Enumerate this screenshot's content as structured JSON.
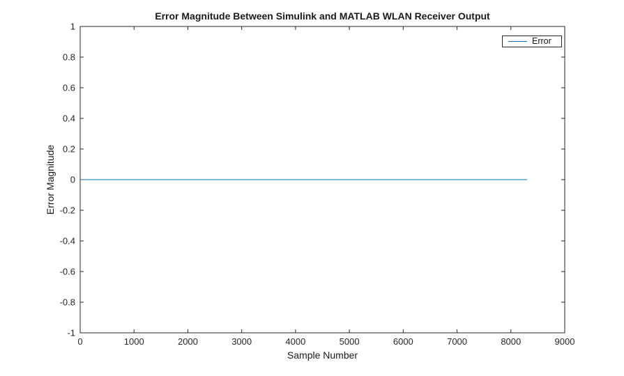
{
  "figure": {
    "background": "#ffffff"
  },
  "chart_data": {
    "type": "line",
    "title": "Error Magnitude Between Simulink and MATLAB WLAN Receiver Output",
    "xlabel": "Sample Number",
    "ylabel": "Error Magnitude",
    "xlim": [
      0,
      9000
    ],
    "ylim": [
      -1,
      1
    ],
    "xticks": [
      0,
      1000,
      2000,
      3000,
      4000,
      5000,
      6000,
      7000,
      8000,
      9000
    ],
    "yticks": [
      -1,
      -0.8,
      -0.6,
      -0.4,
      -0.2,
      0,
      0.2,
      0.4,
      0.6,
      0.8,
      1
    ],
    "grid": false,
    "axis_color": "#262626",
    "legend": {
      "position": "top-right",
      "entries": [
        {
          "label": "Error",
          "color": "#0072BD"
        }
      ]
    },
    "series": [
      {
        "name": "Error",
        "color": "#0072BD",
        "x": [
          0,
          8300
        ],
        "y": [
          0,
          0
        ]
      }
    ]
  }
}
